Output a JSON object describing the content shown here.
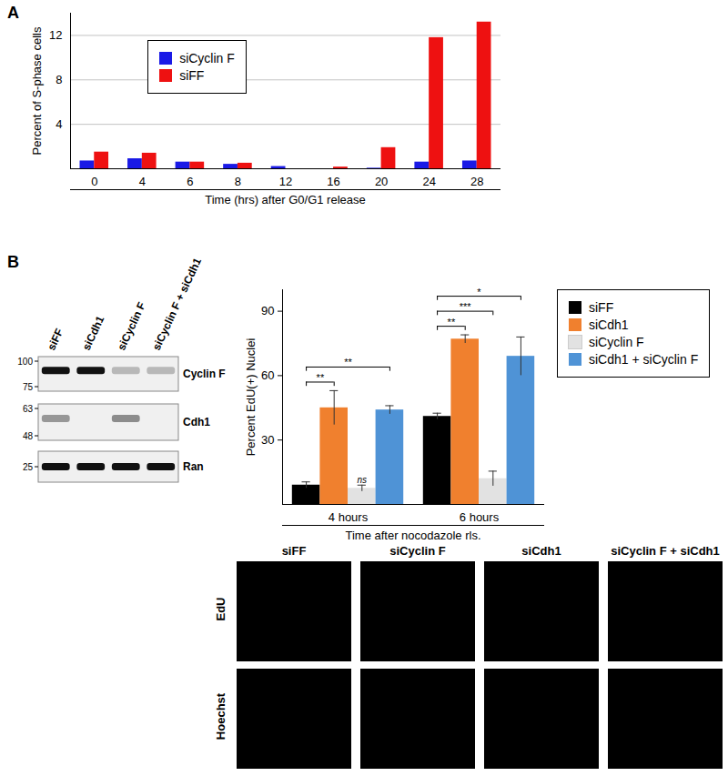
{
  "panel_labels": [
    "A",
    "B"
  ],
  "chart_data": [
    {
      "type": "bar",
      "x_label": "Time (hrs) after G0/G1 release",
      "y_label": "Percent of S-phase cells",
      "categories": [
        0,
        4,
        6,
        8,
        12,
        16,
        20,
        24,
        28
      ],
      "series": [
        {
          "name": "siCyclin F",
          "color": "#1a1ae6",
          "values": [
            0.7,
            0.9,
            0.6,
            0.4,
            0.2,
            0,
            0.05,
            0.6,
            0.7
          ]
        },
        {
          "name": "siFF",
          "color": "#ee1111",
          "values": [
            1.5,
            1.4,
            0.6,
            0.5,
            0,
            0.15,
            1.9,
            11.8,
            13.2
          ]
        }
      ],
      "ylim": [
        0,
        14
      ],
      "yticks": [
        4,
        8,
        12
      ],
      "grid": true,
      "legend": "top-left"
    },
    {
      "type": "bar",
      "x_label": "Time after nocodazole rls.",
      "y_label": "Percent EdU(+) Nuclei",
      "categories": [
        "4 hours",
        "6 hours"
      ],
      "series": [
        {
          "name": "siFF",
          "color": "#000000",
          "values": [
            9,
            41
          ],
          "errors": [
            1.5,
            1.5
          ]
        },
        {
          "name": "siCdh1",
          "color": "#f0802e",
          "values": [
            45,
            77
          ],
          "errors": [
            8,
            2
          ]
        },
        {
          "name": "siCyclin F",
          "color": "#e2e2e2",
          "values": [
            7.5,
            12
          ],
          "errors": [
            1.5,
            3.5
          ]
        },
        {
          "name": "siCdh1 + siCyclin F",
          "color": "#4f93d6",
          "values": [
            44,
            69
          ],
          "errors": [
            2,
            9
          ]
        }
      ],
      "annotations": [
        {
          "category": "4 hours",
          "from": "siFF",
          "to": "siCdh1",
          "label": "**"
        },
        {
          "category": "4 hours",
          "from": "siFF",
          "to": "siCdh1 + siCyclin F",
          "label": "**"
        },
        {
          "category": "4 hours",
          "series": "siCyclin F",
          "label": "ns"
        },
        {
          "category": "6 hours",
          "from": "siFF",
          "to": "siCdh1",
          "label": "**"
        },
        {
          "category": "6 hours",
          "from": "siFF",
          "to": "siCyclin F",
          "label": "***"
        },
        {
          "category": "6 hours",
          "from": "siFF",
          "to": "siCdh1 + siCyclin F",
          "label": "*"
        }
      ],
      "ylim": [
        0,
        100
      ],
      "yticks": [
        30,
        60,
        90
      ],
      "grid": false,
      "legend": "right"
    }
  ],
  "western_blot": {
    "lanes": [
      "siFF",
      "siCdh1",
      "siCyclin F",
      "siCyclin F + siCdh1"
    ],
    "rows": [
      {
        "label": "Cyclin F",
        "markers": [
          100,
          75
        ],
        "band_intensity": [
          1,
          1,
          0.25,
          0.25
        ]
      },
      {
        "label": "Cdh1",
        "markers": [
          63,
          48
        ],
        "band_intensity": [
          0.4,
          0,
          0.45,
          0
        ]
      },
      {
        "label": "Ran",
        "markers": [
          25
        ],
        "band_intensity": [
          1,
          1,
          1,
          1
        ]
      }
    ]
  },
  "micrographs": {
    "columns": [
      "siFF",
      "siCyclin F",
      "siCdh1",
      "siCyclin F + siCdh1"
    ],
    "rows": [
      "EdU",
      "Hoechst"
    ]
  }
}
